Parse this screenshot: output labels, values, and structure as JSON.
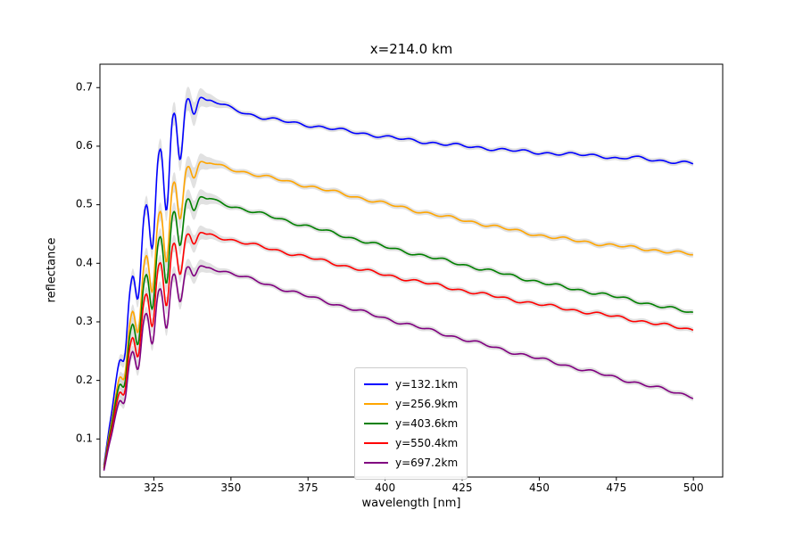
{
  "chart_data": {
    "type": "line",
    "title": "x=214.0 km",
    "xlabel": "wavelength [nm]",
    "ylabel": "reflectance",
    "xlim": [
      307.5,
      509.5
    ],
    "ylim": [
      0.035,
      0.74
    ],
    "x_range_nm": [
      308.8,
      500
    ],
    "x_ticks": [
      325,
      350,
      375,
      400,
      425,
      450,
      475,
      500
    ],
    "x_tick_labels": [
      "325",
      "350",
      "375",
      "400",
      "425",
      "450",
      "475",
      "500"
    ],
    "y_ticks": [
      0.1,
      0.2,
      0.3,
      0.4,
      0.5,
      0.6,
      0.7
    ],
    "y_tick_labels": [
      "0.1",
      "0.2",
      "0.3",
      "0.4",
      "0.5",
      "0.6",
      "0.7"
    ],
    "grid": false,
    "legend_position": "lower center inside axes",
    "line_width": 1.6,
    "uncertainty_band": {
      "color": "#c8c8c8",
      "alpha": 0.55
    },
    "band_width": {
      "base": 0.0045,
      "osc_extra": 0.016,
      "window": [
        309,
        315,
        338,
        352
      ]
    },
    "oscillation": {
      "period_nm": 4.6,
      "peak_phase_nm": 313.0,
      "depth_fraction": 0.22,
      "dip_sharpness": 1.3,
      "window": [
        310.5,
        316,
        331,
        344
      ]
    },
    "tail_wiggle": {
      "amplitude": 0.002,
      "onset_nm": 340,
      "full_nm": 348
    },
    "series": [
      {
        "name": "y=132.1km",
        "color": "#0000ff",
        "peak": {
          "x": 338,
          "y": 0.685
        },
        "end_value": 0.57,
        "envelope_points": [
          [
            308.8,
            0.055
          ],
          [
            310,
            0.1
          ],
          [
            312,
            0.175
          ],
          [
            314,
            0.245
          ],
          [
            316,
            0.315
          ],
          [
            318,
            0.38
          ],
          [
            320,
            0.44
          ],
          [
            322,
            0.49
          ],
          [
            324,
            0.535
          ],
          [
            326,
            0.578
          ],
          [
            328,
            0.613
          ],
          [
            330,
            0.641
          ],
          [
            332,
            0.661
          ],
          [
            334,
            0.674
          ],
          [
            336,
            0.681
          ],
          [
            338,
            0.685
          ],
          [
            340,
            0.684
          ],
          [
            343,
            0.679
          ],
          [
            346,
            0.673
          ],
          [
            350,
            0.665
          ],
          [
            355,
            0.656
          ],
          [
            360,
            0.649
          ],
          [
            370,
            0.64
          ],
          [
            380,
            0.632
          ],
          [
            390,
            0.624
          ],
          [
            400,
            0.616
          ],
          [
            410,
            0.609
          ],
          [
            420,
            0.603
          ],
          [
            430,
            0.598
          ],
          [
            440,
            0.593
          ],
          [
            450,
            0.589
          ],
          [
            460,
            0.586
          ],
          [
            470,
            0.584
          ],
          [
            476,
            0.578
          ],
          [
            480,
            0.581
          ],
          [
            490,
            0.575
          ],
          [
            500,
            0.57
          ]
        ]
      },
      {
        "name": "y=256.9km",
        "color": "#ffa500",
        "peak": {
          "x": 340,
          "y": 0.574
        },
        "end_value": 0.415,
        "envelope_points": [
          [
            308.8,
            0.052
          ],
          [
            310,
            0.092
          ],
          [
            312,
            0.155
          ],
          [
            314,
            0.215
          ],
          [
            316,
            0.27
          ],
          [
            318,
            0.32
          ],
          [
            320,
            0.365
          ],
          [
            322,
            0.405
          ],
          [
            324,
            0.442
          ],
          [
            326,
            0.475
          ],
          [
            328,
            0.503
          ],
          [
            330,
            0.525
          ],
          [
            332,
            0.543
          ],
          [
            334,
            0.556
          ],
          [
            336,
            0.565
          ],
          [
            338,
            0.571
          ],
          [
            340,
            0.574
          ],
          [
            343,
            0.572
          ],
          [
            346,
            0.567
          ],
          [
            350,
            0.561
          ],
          [
            355,
            0.555
          ],
          [
            360,
            0.549
          ],
          [
            370,
            0.538
          ],
          [
            380,
            0.526
          ],
          [
            390,
            0.514
          ],
          [
            400,
            0.502
          ],
          [
            410,
            0.49
          ],
          [
            420,
            0.479
          ],
          [
            430,
            0.469
          ],
          [
            440,
            0.458
          ],
          [
            450,
            0.448
          ],
          [
            460,
            0.44
          ],
          [
            470,
            0.433
          ],
          [
            480,
            0.427
          ],
          [
            490,
            0.421
          ],
          [
            500,
            0.415
          ]
        ]
      },
      {
        "name": "y=403.6km",
        "color": "#008000",
        "peak": {
          "x": 340,
          "y": 0.514
        },
        "end_value": 0.315,
        "envelope_points": [
          [
            308.8,
            0.05
          ],
          [
            310,
            0.088
          ],
          [
            312,
            0.148
          ],
          [
            314,
            0.202
          ],
          [
            316,
            0.252
          ],
          [
            318,
            0.298
          ],
          [
            320,
            0.338
          ],
          [
            322,
            0.374
          ],
          [
            324,
            0.406
          ],
          [
            326,
            0.434
          ],
          [
            328,
            0.458
          ],
          [
            330,
            0.477
          ],
          [
            332,
            0.492
          ],
          [
            334,
            0.503
          ],
          [
            336,
            0.51
          ],
          [
            338,
            0.513
          ],
          [
            340,
            0.514
          ],
          [
            343,
            0.511
          ],
          [
            346,
            0.505
          ],
          [
            350,
            0.498
          ],
          [
            355,
            0.491
          ],
          [
            360,
            0.484
          ],
          [
            370,
            0.47
          ],
          [
            380,
            0.456
          ],
          [
            390,
            0.442
          ],
          [
            400,
            0.428
          ],
          [
            410,
            0.416
          ],
          [
            420,
            0.404
          ],
          [
            430,
            0.392
          ],
          [
            440,
            0.38
          ],
          [
            450,
            0.368
          ],
          [
            460,
            0.357
          ],
          [
            470,
            0.348
          ],
          [
            480,
            0.337
          ],
          [
            490,
            0.326
          ],
          [
            500,
            0.315
          ]
        ]
      },
      {
        "name": "y=550.4km",
        "color": "#ff0000",
        "peak": {
          "x": 340,
          "y": 0.453
        },
        "end_value": 0.286,
        "envelope_points": [
          [
            308.8,
            0.048
          ],
          [
            310,
            0.083
          ],
          [
            312,
            0.138
          ],
          [
            314,
            0.188
          ],
          [
            316,
            0.234
          ],
          [
            318,
            0.275
          ],
          [
            320,
            0.311
          ],
          [
            322,
            0.342
          ],
          [
            324,
            0.369
          ],
          [
            326,
            0.392
          ],
          [
            328,
            0.411
          ],
          [
            330,
            0.426
          ],
          [
            332,
            0.437
          ],
          [
            334,
            0.445
          ],
          [
            336,
            0.45
          ],
          [
            338,
            0.453
          ],
          [
            340,
            0.453
          ],
          [
            343,
            0.45
          ],
          [
            346,
            0.445
          ],
          [
            350,
            0.44
          ],
          [
            355,
            0.434
          ],
          [
            360,
            0.428
          ],
          [
            370,
            0.416
          ],
          [
            380,
            0.404
          ],
          [
            390,
            0.392
          ],
          [
            400,
            0.38
          ],
          [
            410,
            0.37
          ],
          [
            420,
            0.359
          ],
          [
            430,
            0.349
          ],
          [
            440,
            0.339
          ],
          [
            450,
            0.33
          ],
          [
            460,
            0.321
          ],
          [
            470,
            0.313
          ],
          [
            480,
            0.304
          ],
          [
            490,
            0.295
          ],
          [
            500,
            0.286
          ]
        ]
      },
      {
        "name": "y=697.2km",
        "color": "#800080",
        "peak": {
          "x": 340,
          "y": 0.396
        },
        "end_value": 0.172,
        "envelope_points": [
          [
            308.8,
            0.046
          ],
          [
            310,
            0.078
          ],
          [
            312,
            0.128
          ],
          [
            314,
            0.173
          ],
          [
            316,
            0.214
          ],
          [
            318,
            0.251
          ],
          [
            320,
            0.283
          ],
          [
            322,
            0.31
          ],
          [
            324,
            0.332
          ],
          [
            326,
            0.35
          ],
          [
            328,
            0.364
          ],
          [
            330,
            0.375
          ],
          [
            332,
            0.384
          ],
          [
            334,
            0.39
          ],
          [
            336,
            0.394
          ],
          [
            338,
            0.396
          ],
          [
            340,
            0.396
          ],
          [
            343,
            0.393
          ],
          [
            346,
            0.388
          ],
          [
            350,
            0.383
          ],
          [
            355,
            0.375
          ],
          [
            360,
            0.367
          ],
          [
            370,
            0.351
          ],
          [
            380,
            0.336
          ],
          [
            390,
            0.321
          ],
          [
            400,
            0.306
          ],
          [
            410,
            0.292
          ],
          [
            420,
            0.278
          ],
          [
            430,
            0.264
          ],
          [
            440,
            0.25
          ],
          [
            450,
            0.237
          ],
          [
            460,
            0.224
          ],
          [
            470,
            0.211
          ],
          [
            480,
            0.198
          ],
          [
            490,
            0.185
          ],
          [
            500,
            0.172
          ]
        ]
      }
    ]
  }
}
